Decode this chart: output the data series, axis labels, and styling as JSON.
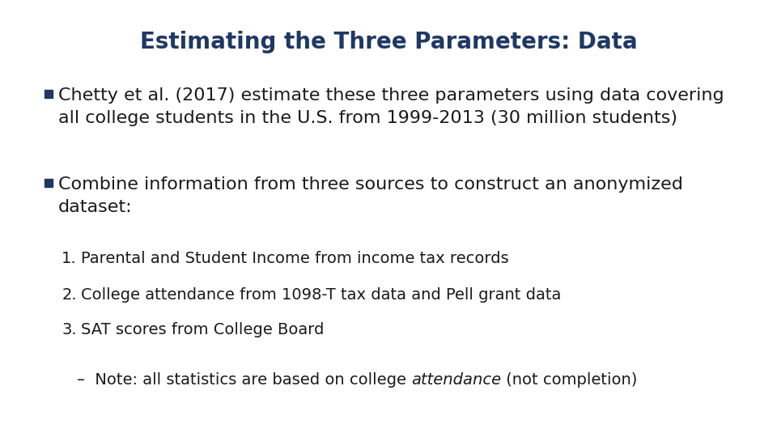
{
  "title": "Estimating the Three Parameters: Data",
  "title_color": "#1f3864",
  "title_fontsize": 20,
  "background_color": "#ffffff",
  "text_color": "#1a1a1a",
  "bullet_color": "#1f3864",
  "bullet1": "Chetty et al. (2017) estimate these three parameters using data covering\nall college students in the U.S. from 1999-2013 (30 million students)",
  "bullet2": "Combine information from three sources to construct an anonymized\ndataset:",
  "numbered_items": [
    "Parental and Student Income from income tax records",
    "College attendance from 1098-T tax data and Pell grant data",
    "SAT scores from College Board"
  ],
  "note_prefix": "–  Note: all statistics are based on college ",
  "note_italic": "attendance",
  "note_suffix": " (not completion)",
  "main_fontsize": 16,
  "sub_fontsize": 14
}
